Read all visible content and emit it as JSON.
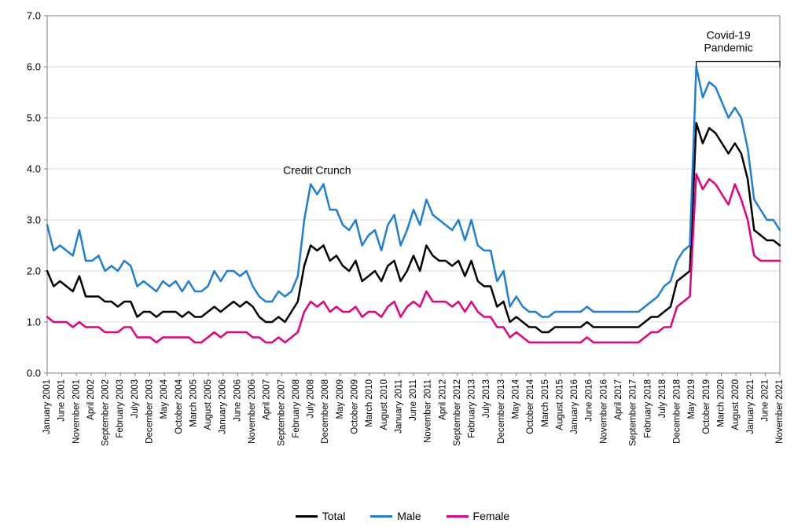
{
  "chart": {
    "type": "line",
    "background_color": "#ffffff",
    "border_color": "#808080",
    "grid_color": "#d9d9d9",
    "axis_text_color": "#000000",
    "font_family": "Arial",
    "y_axis": {
      "min": 0,
      "max": 7,
      "tick_step": 1,
      "label_format": ".1f",
      "label_fontsize": 13
    },
    "x_axis": {
      "label_fontsize": 11.5,
      "label_rotation": -90,
      "labels": [
        "January 2001",
        "June 2001",
        "November 2001",
        "April 2002",
        "September 2002",
        "February 2003",
        "July 2003",
        "December 2003",
        "May 2004",
        "October 2004",
        "March 2005",
        "August 2005",
        "January 2006",
        "June 2006",
        "November 2006",
        "April 2007",
        "September 2007",
        "February 2008",
        "July 2008",
        "December 2008",
        "May 2009",
        "October 2009",
        "March 2010",
        "August 2010",
        "January 2011",
        "June 2011",
        "November 2011",
        "April 2012",
        "September 2012",
        "February 2013",
        "July 2013",
        "December 2013",
        "May 2014",
        "October 2014",
        "March 2015",
        "August 2015",
        "January 2016",
        "June 2016",
        "November 2016",
        "April 2017",
        "September 2017",
        "February 2018",
        "July 2018",
        "December 2018",
        "May 2019",
        "October 2019",
        "March 2020",
        "August 2020",
        "January 2021",
        "June 2021",
        "November 2021"
      ]
    },
    "series": [
      {
        "name": "Total",
        "color": "#000000",
        "line_width": 2.5,
        "values": [
          2.0,
          1.7,
          1.8,
          1.7,
          1.6,
          1.9,
          1.5,
          1.5,
          1.5,
          1.4,
          1.4,
          1.3,
          1.4,
          1.4,
          1.1,
          1.2,
          1.2,
          1.1,
          1.2,
          1.2,
          1.2,
          1.1,
          1.2,
          1.1,
          1.1,
          1.2,
          1.3,
          1.2,
          1.3,
          1.4,
          1.3,
          1.4,
          1.3,
          1.1,
          1.0,
          1.0,
          1.1,
          1.0,
          1.2,
          1.4,
          2.1,
          2.5,
          2.4,
          2.5,
          2.2,
          2.3,
          2.1,
          2.0,
          2.2,
          1.8,
          1.9,
          2.0,
          1.8,
          2.1,
          2.2,
          1.8,
          2.0,
          2.3,
          2.0,
          2.5,
          2.3,
          2.2,
          2.2,
          2.1,
          2.2,
          1.9,
          2.2,
          1.8,
          1.7,
          1.7,
          1.3,
          1.4,
          1.0,
          1.1,
          1.0,
          0.9,
          0.9,
          0.8,
          0.8,
          0.9,
          0.9,
          0.9,
          0.9,
          0.9,
          1.0,
          0.9,
          0.9,
          0.9,
          0.9,
          0.9,
          0.9,
          0.9,
          0.9,
          1.0,
          1.1,
          1.1,
          1.2,
          1.3,
          1.8,
          1.9,
          2.0,
          4.9,
          4.5,
          4.8,
          4.7,
          4.5,
          4.3,
          4.5,
          4.3,
          3.8,
          2.8,
          2.7,
          2.6,
          2.6,
          2.5
        ]
      },
      {
        "name": "Male",
        "color": "#1f7fd6",
        "line_width": 2.5,
        "values": [
          2.9,
          2.4,
          2.5,
          2.4,
          2.3,
          2.8,
          2.2,
          2.2,
          2.3,
          2.0,
          2.1,
          2.0,
          2.2,
          2.1,
          1.7,
          1.8,
          1.7,
          1.6,
          1.8,
          1.7,
          1.8,
          1.6,
          1.8,
          1.6,
          1.6,
          1.7,
          2.0,
          1.8,
          2.0,
          2.0,
          1.9,
          2.0,
          1.7,
          1.5,
          1.4,
          1.4,
          1.6,
          1.5,
          1.6,
          1.9,
          3.0,
          3.7,
          3.5,
          3.7,
          3.2,
          3.2,
          2.9,
          2.8,
          3.0,
          2.5,
          2.7,
          2.8,
          2.4,
          2.9,
          3.1,
          2.5,
          2.8,
          3.2,
          2.9,
          3.4,
          3.1,
          3.0,
          2.9,
          2.8,
          3.0,
          2.6,
          3.0,
          2.5,
          2.4,
          2.4,
          1.8,
          2.0,
          1.3,
          1.5,
          1.3,
          1.2,
          1.2,
          1.1,
          1.1,
          1.2,
          1.2,
          1.2,
          1.2,
          1.2,
          1.3,
          1.2,
          1.2,
          1.2,
          1.2,
          1.2,
          1.2,
          1.2,
          1.2,
          1.3,
          1.4,
          1.5,
          1.7,
          1.8,
          2.2,
          2.4,
          2.5,
          6.0,
          5.4,
          5.7,
          5.6,
          5.3,
          5.0,
          5.2,
          5.0,
          4.4,
          3.4,
          3.2,
          3.0,
          3.0,
          2.8
        ]
      },
      {
        "name": "Female",
        "color": "#e6007e",
        "line_width": 2.5,
        "values": [
          1.1,
          1.0,
          1.0,
          1.0,
          0.9,
          1.0,
          0.9,
          0.9,
          0.9,
          0.8,
          0.8,
          0.8,
          0.9,
          0.9,
          0.7,
          0.7,
          0.7,
          0.6,
          0.7,
          0.7,
          0.7,
          0.7,
          0.7,
          0.6,
          0.6,
          0.7,
          0.8,
          0.7,
          0.8,
          0.8,
          0.8,
          0.8,
          0.7,
          0.7,
          0.6,
          0.6,
          0.7,
          0.6,
          0.7,
          0.8,
          1.2,
          1.4,
          1.3,
          1.4,
          1.2,
          1.3,
          1.2,
          1.2,
          1.3,
          1.1,
          1.2,
          1.2,
          1.1,
          1.3,
          1.4,
          1.1,
          1.3,
          1.4,
          1.3,
          1.6,
          1.4,
          1.4,
          1.4,
          1.3,
          1.4,
          1.2,
          1.4,
          1.2,
          1.1,
          1.1,
          0.9,
          0.9,
          0.7,
          0.8,
          0.7,
          0.6,
          0.6,
          0.6,
          0.6,
          0.6,
          0.6,
          0.6,
          0.6,
          0.6,
          0.7,
          0.6,
          0.6,
          0.6,
          0.6,
          0.6,
          0.6,
          0.6,
          0.6,
          0.7,
          0.8,
          0.8,
          0.9,
          0.9,
          1.3,
          1.4,
          1.5,
          3.9,
          3.6,
          3.8,
          3.7,
          3.5,
          3.3,
          3.7,
          3.4,
          3.0,
          2.3,
          2.2,
          2.2,
          2.2,
          2.2
        ]
      }
    ],
    "annotations": [
      {
        "text": "Credit Crunch",
        "x_index": 42,
        "y_value": 3.9,
        "fontsize": 14
      },
      {
        "text": "Covid-19\nPandemic",
        "x_index": 106,
        "y_value": 6.55,
        "fontsize": 14,
        "bracket": {
          "from_index": 101,
          "to_index": 114,
          "y_value": 6.1
        }
      }
    ],
    "legend": {
      "items": [
        {
          "label": "Total",
          "color": "#000000"
        },
        {
          "label": "Male",
          "color": "#1f7fd6"
        },
        {
          "label": "Female",
          "color": "#e6007e"
        }
      ]
    }
  }
}
